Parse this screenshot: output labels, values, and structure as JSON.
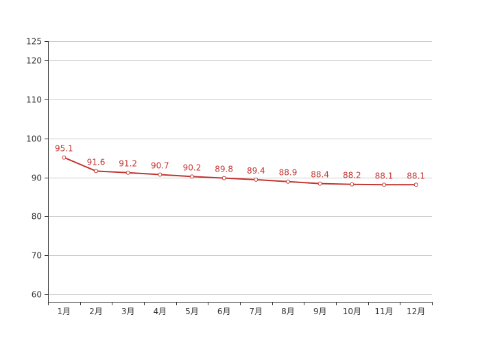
{
  "chart_data": {
    "type": "line",
    "categories": [
      "1月",
      "2月",
      "3月",
      "4月",
      "5月",
      "6月",
      "7月",
      "8月",
      "9月",
      "10月",
      "11月",
      "12月"
    ],
    "series": [
      {
        "values": [
          95.1,
          91.6,
          91.2,
          90.7,
          90.2,
          89.8,
          89.4,
          88.9,
          88.4,
          88.2,
          88.1,
          88.1
        ]
      }
    ],
    "yticks": [
      60,
      70,
      80,
      90,
      100,
      110,
      120,
      125
    ],
    "ylim": [
      58,
      125
    ],
    "grid": true,
    "colors": {
      "line": "#c23531",
      "grid": "#cccccc",
      "axis": "#333333"
    }
  }
}
